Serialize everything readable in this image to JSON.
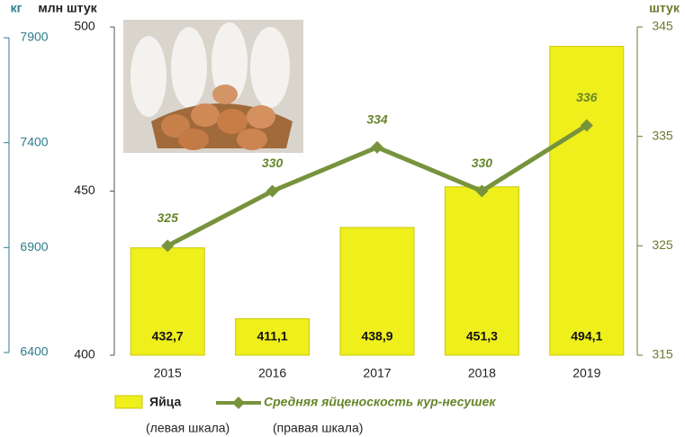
{
  "chart_data": {
    "type": "bar",
    "categories": [
      "2015",
      "2016",
      "2017",
      "2018",
      "2019"
    ],
    "series": [
      {
        "name": "Яйца",
        "type": "bar",
        "axis": "y",
        "color": "#efef1c",
        "values": [
          432.7,
          411.1,
          438.9,
          451.3,
          494.1
        ],
        "value_labels": [
          "432,7",
          "411,1",
          "438,9",
          "451,3",
          "494,1"
        ]
      },
      {
        "name": "Средняя яйценоскость кур-несушек",
        "type": "line",
        "axis": "y2",
        "color": "#77933c",
        "values": [
          325,
          330,
          334,
          330,
          336
        ]
      }
    ],
    "legend_notes": [
      "(левая шкала)",
      "(правая шкала)"
    ],
    "ylabel": "млн штук",
    "ylim": [
      400,
      500
    ],
    "yticks": [
      400,
      450,
      500
    ],
    "y2label": "штук",
    "y2lim": [
      315,
      345
    ],
    "y2ticks": [
      315,
      325,
      335,
      345
    ],
    "y3label": "кг",
    "y3lim": [
      6400,
      7900
    ],
    "y3ticks": [
      6400,
      6900,
      7400,
      7900
    ],
    "legend": "bottom"
  }
}
